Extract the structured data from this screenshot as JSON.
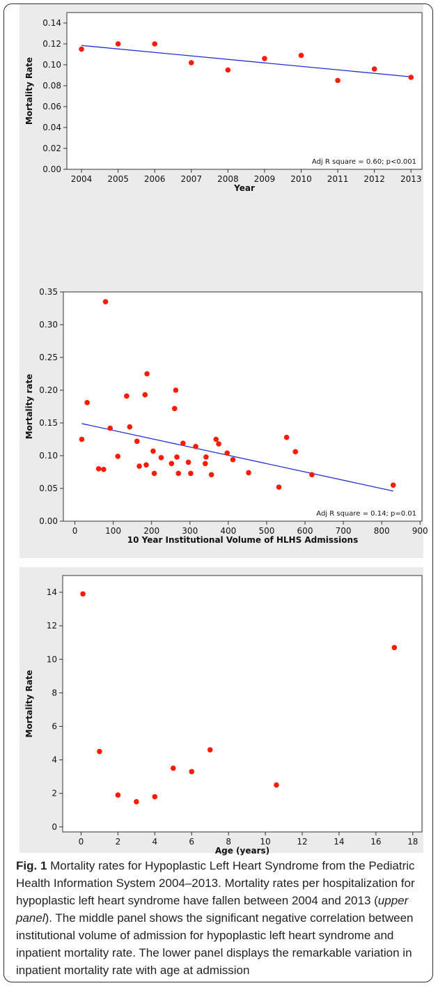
{
  "chart_data": [
    {
      "type": "scatter",
      "xlabel": "Year",
      "ylabel": "Mortality Rate",
      "xlim": [
        2003.6,
        2013.3
      ],
      "ylim": [
        0,
        0.15
      ],
      "xticks": [
        2004,
        2005,
        2006,
        2007,
        2008,
        2009,
        2010,
        2011,
        2012,
        2013
      ],
      "yticks": [
        0.0,
        0.02,
        0.04,
        0.06,
        0.08,
        0.1,
        0.12,
        0.14
      ],
      "ytick_decimals": 2,
      "annotation": "Adj R square = 0.60; p<0.001",
      "points": {
        "x": [
          2004,
          2005,
          2006,
          2007,
          2008,
          2009,
          2010,
          2011,
          2012,
          2013
        ],
        "y": [
          0.115,
          0.12,
          0.12,
          0.102,
          0.095,
          0.106,
          0.109,
          0.085,
          0.096,
          0.088
        ]
      },
      "trendline": {
        "x": [
          2004,
          2013
        ],
        "y": [
          0.1185,
          0.0885
        ]
      },
      "point_color": "#ff1a00",
      "line_color": "#1f2fd6"
    },
    {
      "type": "scatter",
      "xlabel": "10 Year Institutional Volume of HLHS Admissions",
      "ylabel": "Mortality rate",
      "xlim": [
        -30,
        905
      ],
      "ylim": [
        0,
        0.35
      ],
      "xticks": [
        0,
        100,
        200,
        300,
        400,
        500,
        600,
        700,
        800,
        900
      ],
      "yticks": [
        0.0,
        0.05,
        0.1,
        0.15,
        0.2,
        0.25,
        0.3,
        0.35
      ],
      "ytick_decimals": 2,
      "annotation": "Adj R square = 0.14; p=0.01",
      "points": {
        "x": [
          18,
          32,
          62,
          75,
          80,
          92,
          112,
          135,
          143,
          162,
          168,
          183,
          186,
          188,
          204,
          207,
          225,
          252,
          260,
          263,
          266,
          270,
          282,
          296,
          302,
          315,
          340,
          342,
          356,
          368,
          375,
          397,
          412,
          453,
          532,
          552,
          575,
          618,
          830
        ],
        "y": [
          0.125,
          0.181,
          0.08,
          0.079,
          0.335,
          0.142,
          0.099,
          0.191,
          0.144,
          0.122,
          0.084,
          0.193,
          0.086,
          0.225,
          0.107,
          0.073,
          0.097,
          0.088,
          0.172,
          0.2,
          0.098,
          0.073,
          0.119,
          0.09,
          0.073,
          0.114,
          0.088,
          0.098,
          0.071,
          0.125,
          0.118,
          0.104,
          0.094,
          0.074,
          0.052,
          0.128,
          0.106,
          0.071,
          0.055
        ]
      },
      "trendline": {
        "x": [
          18,
          830
        ],
        "y": [
          0.149,
          0.046
        ]
      },
      "point_color": "#ff1a00",
      "line_color": "#1f2fd6"
    },
    {
      "type": "scatter",
      "xlabel": "Age (years)",
      "ylabel": "Mortality Rate",
      "xlim": [
        -1,
        18.5
      ],
      "ylim": [
        -0.3,
        15
      ],
      "xticks": [
        0,
        2,
        4,
        6,
        8,
        10,
        12,
        14,
        16,
        18
      ],
      "yticks": [
        0,
        2,
        4,
        6,
        8,
        10,
        12,
        14
      ],
      "ytick_decimals": 0,
      "annotation": "",
      "points": {
        "x": [
          0.1,
          1,
          2,
          3,
          4,
          5,
          6,
          7,
          10.6,
          17
        ],
        "y": [
          13.9,
          4.5,
          1.9,
          1.5,
          1.8,
          3.5,
          3.3,
          4.6,
          2.5,
          10.7
        ]
      },
      "point_color": "#ff1a00"
    }
  ],
  "caption": {
    "label": "Fig. 1",
    "text_before": " Mortality rates for Hypoplastic Left Heart Syndrome from the Pediatric Health Information System 2004–2013. Mortality rates per hospitalization for hypoplastic left heart syndrome have fallen between 2004 and 2013 (",
    "emphasis": "upper panel",
    "text_after": "). The middle panel shows the significant negative correlation between institutional volume of admission for hypoplastic left heart syndrome and inpatient mortality rate. The lower panel displays the remarkable variation in inpatient mortality rate with age at admission"
  }
}
